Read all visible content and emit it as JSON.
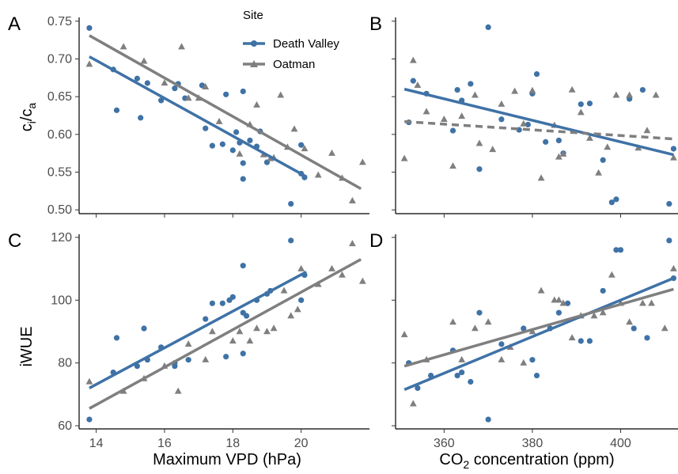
{
  "legend": {
    "title": "Site",
    "items": [
      {
        "label": "Death Valley",
        "color": "#3f72a6",
        "marker": "circle"
      },
      {
        "label": "Oatman",
        "color": "#7f7f7f",
        "marker": "triangle"
      }
    ]
  },
  "chart_data": [
    {
      "panel": "A",
      "type": "scatter",
      "xlabel": "",
      "ylabel_main": "c",
      "ylabel_sub1": "i",
      "ylabel_sep": "/c",
      "ylabel_sub2": "a",
      "xlim": [
        13.5,
        22
      ],
      "ylim": [
        0.495,
        0.755
      ],
      "xticks": [
        14,
        16,
        18,
        20
      ],
      "yticks": [
        0.5,
        0.55,
        0.6,
        0.65,
        0.7,
        0.75
      ],
      "ytick_labels": [
        "0.50",
        "0.55",
        "0.60",
        "0.65",
        "0.70",
        "0.75"
      ],
      "series": [
        {
          "name": "Death Valley",
          "color": "#3f72a6",
          "marker": "circle",
          "points": [
            [
              13.8,
              0.741
            ],
            [
              14.5,
              0.686
            ],
            [
              14.6,
              0.632
            ],
            [
              15.2,
              0.674
            ],
            [
              15.3,
              0.622
            ],
            [
              15.5,
              0.668
            ],
            [
              15.9,
              0.645
            ],
            [
              16.3,
              0.661
            ],
            [
              16.4,
              0.667
            ],
            [
              16.6,
              0.648
            ],
            [
              17.1,
              0.665
            ],
            [
              17.2,
              0.608
            ],
            [
              17.4,
              0.585
            ],
            [
              17.7,
              0.587
            ],
            [
              17.8,
              0.653
            ],
            [
              18.0,
              0.579
            ],
            [
              18.1,
              0.603
            ],
            [
              18.2,
              0.589
            ],
            [
              18.3,
              0.657
            ],
            [
              18.3,
              0.541
            ],
            [
              18.3,
              0.562
            ],
            [
              18.5,
              0.592
            ],
            [
              18.7,
              0.584
            ],
            [
              18.8,
              0.604
            ],
            [
              19.0,
              0.563
            ],
            [
              19.7,
              0.508
            ],
            [
              20.0,
              0.586
            ],
            [
              20.0,
              0.548
            ],
            [
              20.1,
              0.543
            ]
          ],
          "fit": [
            [
              13.8,
              0.703
            ],
            [
              20.15,
              0.544
            ]
          ],
          "fit_dash": false
        },
        {
          "name": "Oatman",
          "color": "#7f7f7f",
          "marker": "triangle",
          "points": [
            [
              13.8,
              0.693
            ],
            [
              14.8,
              0.716
            ],
            [
              15.4,
              0.697
            ],
            [
              16.0,
              0.668
            ],
            [
              16.5,
              0.716
            ],
            [
              16.7,
              0.648
            ],
            [
              17.0,
              0.648
            ],
            [
              17.2,
              0.663
            ],
            [
              17.6,
              0.617
            ],
            [
              18.2,
              0.574
            ],
            [
              18.5,
              0.613
            ],
            [
              18.7,
              0.639
            ],
            [
              18.9,
              0.573
            ],
            [
              19.1,
              0.568
            ],
            [
              19.2,
              0.569
            ],
            [
              19.4,
              0.652
            ],
            [
              19.6,
              0.583
            ],
            [
              19.8,
              0.607
            ],
            [
              20.1,
              0.581
            ],
            [
              20.5,
              0.546
            ],
            [
              20.9,
              0.575
            ],
            [
              21.2,
              0.542
            ],
            [
              21.5,
              0.512
            ],
            [
              21.8,
              0.563
            ]
          ],
          "fit": [
            [
              13.8,
              0.731
            ],
            [
              21.75,
              0.528
            ]
          ],
          "fit_dash": false
        }
      ]
    },
    {
      "panel": "B",
      "type": "scatter",
      "xlabel": "",
      "ylabel_main": "",
      "xlim": [
        349,
        413
      ],
      "ylim": [
        0.495,
        0.755
      ],
      "xticks": [
        360,
        380,
        400
      ],
      "yticks": [
        0.5,
        0.55,
        0.6,
        0.65,
        0.7,
        0.75
      ],
      "series": [
        {
          "name": "Death Valley",
          "color": "#3f72a6",
          "marker": "circle",
          "points": [
            [
              352,
              0.616
            ],
            [
              353,
              0.671
            ],
            [
              356,
              0.654
            ],
            [
              362,
              0.605
            ],
            [
              363,
              0.659
            ],
            [
              364,
              0.645
            ],
            [
              366,
              0.667
            ],
            [
              368,
              0.554
            ],
            [
              370,
              0.742
            ],
            [
              373,
              0.62
            ],
            [
              377,
              0.606
            ],
            [
              379,
              0.613
            ],
            [
              380,
              0.654
            ],
            [
              381,
              0.68
            ],
            [
              383,
              0.59
            ],
            [
              386,
              0.592
            ],
            [
              387,
              0.575
            ],
            [
              391,
              0.64
            ],
            [
              393,
              0.641
            ],
            [
              396,
              0.566
            ],
            [
              398,
              0.51
            ],
            [
              399,
              0.514
            ],
            [
              402,
              0.647
            ],
            [
              405,
              0.659
            ],
            [
              411,
              0.508
            ],
            [
              412,
              0.581
            ]
          ],
          "fit": [
            [
              351,
              0.66
            ],
            [
              412,
              0.573
            ]
          ],
          "fit_dash": false
        },
        {
          "name": "Oatman",
          "color": "#7f7f7f",
          "marker": "triangle",
          "points": [
            [
              351,
              0.568
            ],
            [
              353,
              0.698
            ],
            [
              354,
              0.665
            ],
            [
              356,
              0.63
            ],
            [
              360,
              0.62
            ],
            [
              362,
              0.558
            ],
            [
              364,
              0.624
            ],
            [
              367,
              0.652
            ],
            [
              368,
              0.588
            ],
            [
              371,
              0.58
            ],
            [
              373,
              0.64
            ],
            [
              376,
              0.657
            ],
            [
              378,
              0.614
            ],
            [
              380,
              0.658
            ],
            [
              382,
              0.542
            ],
            [
              385,
              0.612
            ],
            [
              386,
              0.57
            ],
            [
              387,
              0.574
            ],
            [
              389,
              0.659
            ],
            [
              391,
              0.629
            ],
            [
              393,
              0.595
            ],
            [
              395,
              0.549
            ],
            [
              397,
              0.583
            ],
            [
              399,
              0.652
            ],
            [
              402,
              0.652
            ],
            [
              404,
              0.582
            ],
            [
              406,
              0.605
            ],
            [
              408,
              0.652
            ],
            [
              412,
              0.569
            ]
          ],
          "fit": [
            [
              351,
              0.617
            ],
            [
              412,
              0.594
            ]
          ],
          "fit_dash": true
        }
      ]
    },
    {
      "panel": "C",
      "type": "scatter",
      "xlabel": "Maximum VPD (hPa)",
      "ylabel_main": "iWUE",
      "xlim": [
        13.5,
        22
      ],
      "ylim": [
        59,
        121
      ],
      "xticks": [
        14,
        16,
        18,
        20
      ],
      "yticks": [
        60,
        80,
        100,
        120
      ],
      "ytick_labels": [
        "60",
        "80",
        "100",
        "120"
      ],
      "series": [
        {
          "name": "Death Valley",
          "color": "#3f72a6",
          "marker": "circle",
          "points": [
            [
              13.8,
              62.0
            ],
            [
              14.5,
              77.0
            ],
            [
              14.6,
              88.0
            ],
            [
              15.2,
              79.0
            ],
            [
              15.4,
              91.0
            ],
            [
              15.5,
              81.0
            ],
            [
              15.9,
              85.0
            ],
            [
              16.3,
              80.0
            ],
            [
              16.3,
              79.0
            ],
            [
              16.7,
              81.0
            ],
            [
              17.2,
              94.0
            ],
            [
              17.4,
              99.0
            ],
            [
              17.7,
              99.0
            ],
            [
              17.8,
              82.0
            ],
            [
              17.9,
              100.0
            ],
            [
              18.0,
              101.0
            ],
            [
              18.3,
              96.0
            ],
            [
              18.3,
              111.0
            ],
            [
              18.3,
              83.0
            ],
            [
              18.4,
              95.0
            ],
            [
              18.7,
              100.0
            ],
            [
              19.0,
              102.0
            ],
            [
              19.1,
              103.0
            ],
            [
              19.7,
              119.0
            ],
            [
              20.0,
              100.0
            ],
            [
              20.1,
              108.0
            ]
          ],
          "fit": [
            [
              13.8,
              72.0
            ],
            [
              20.15,
              109.0
            ]
          ],
          "fit_dash": false
        },
        {
          "name": "Oatman",
          "color": "#7f7f7f",
          "marker": "triangle",
          "points": [
            [
              13.8,
              74.0
            ],
            [
              14.8,
              71.0
            ],
            [
              15.4,
              75.0
            ],
            [
              16.0,
              79.0
            ],
            [
              16.4,
              71.0
            ],
            [
              16.7,
              86.0
            ],
            [
              17.2,
              81.0
            ],
            [
              17.4,
              90.0
            ],
            [
              18.0,
              87.0
            ],
            [
              18.2,
              90.0
            ],
            [
              18.5,
              87.0
            ],
            [
              18.7,
              91.0
            ],
            [
              19.0,
              90.0
            ],
            [
              19.2,
              91.0
            ],
            [
              19.5,
              103.0
            ],
            [
              19.7,
              95.0
            ],
            [
              19.9,
              97.0
            ],
            [
              20.0,
              110.0
            ],
            [
              20.5,
              105.0
            ],
            [
              20.9,
              110.0
            ],
            [
              21.2,
              108.0
            ],
            [
              21.5,
              118.0
            ],
            [
              21.8,
              106.0
            ]
          ],
          "fit": [
            [
              13.8,
              65.5
            ],
            [
              21.75,
              113.0
            ]
          ],
          "fit_dash": false
        }
      ]
    },
    {
      "panel": "D",
      "type": "scatter",
      "xlabel_main": "CO",
      "xlabel_sub": "2",
      "xlabel_rest": " concentration (ppm)",
      "ylabel_main": "",
      "xlim": [
        349,
        413
      ],
      "ylim": [
        59,
        121
      ],
      "xticks": [
        360,
        380,
        400
      ],
      "yticks": [
        60,
        80,
        100,
        120
      ],
      "series": [
        {
          "name": "Death Valley",
          "color": "#3f72a6",
          "marker": "circle",
          "points": [
            [
              352,
              80.0
            ],
            [
              354,
              72.0
            ],
            [
              357,
              76.0
            ],
            [
              362,
              84.0
            ],
            [
              363,
              76.0
            ],
            [
              364,
              77.0
            ],
            [
              366,
              74.0
            ],
            [
              368,
              96.0
            ],
            [
              370,
              62.0
            ],
            [
              373,
              86.0
            ],
            [
              378,
              91.0
            ],
            [
              380,
              81.0
            ],
            [
              381,
              76.0
            ],
            [
              384,
              91.0
            ],
            [
              386,
              96.0
            ],
            [
              388,
              99.0
            ],
            [
              391,
              87.0
            ],
            [
              393,
              87.0
            ],
            [
              396,
              103.0
            ],
            [
              399,
              116.0
            ],
            [
              400,
              116.0
            ],
            [
              403,
              91.0
            ],
            [
              406,
              88.0
            ],
            [
              411,
              119.0
            ],
            [
              412,
              107.0
            ]
          ],
          "fit": [
            [
              351,
              71.5
            ],
            [
              412,
              107.0
            ]
          ],
          "fit_dash": false
        },
        {
          "name": "Oatman",
          "color": "#7f7f7f",
          "marker": "triangle",
          "points": [
            [
              351,
              89.0
            ],
            [
              353,
              67.0
            ],
            [
              356,
              81.0
            ],
            [
              362,
              93.0
            ],
            [
              364,
              81.0
            ],
            [
              367,
              91.0
            ],
            [
              370,
              93.0
            ],
            [
              373,
              81.0
            ],
            [
              375,
              85.0
            ],
            [
              378,
              80.0
            ],
            [
              380,
              90.0
            ],
            [
              382,
              103.0
            ],
            [
              385,
              100.0
            ],
            [
              386,
              100.0
            ],
            [
              387,
              99.0
            ],
            [
              389,
              88.0
            ],
            [
              391,
              95.0
            ],
            [
              394,
              95.0
            ],
            [
              396,
              96.0
            ],
            [
              398,
              108.0
            ],
            [
              400,
              99.0
            ],
            [
              402,
              93.0
            ],
            [
              405,
              99.0
            ],
            [
              407,
              99.0
            ],
            [
              410,
              91.0
            ],
            [
              412,
              110.0
            ]
          ],
          "fit": [
            [
              351,
              79.0
            ],
            [
              412,
              103.5
            ]
          ],
          "fit_dash": false
        }
      ]
    }
  ]
}
